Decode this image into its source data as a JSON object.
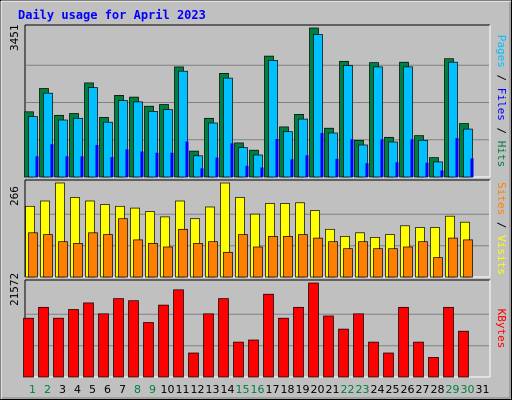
{
  "chart_data": {
    "type": "bar",
    "title": "Daily usage for April 2023",
    "categories": [
      "1",
      "2",
      "3",
      "4",
      "5",
      "6",
      "7",
      "8",
      "9",
      "10",
      "11",
      "12",
      "13",
      "14",
      "15",
      "16",
      "17",
      "18",
      "19",
      "20",
      "21",
      "22",
      "23",
      "24",
      "25",
      "26",
      "27",
      "28",
      "29",
      "30",
      "31"
    ],
    "weekend_days": [
      "1",
      "2",
      "8",
      "9",
      "15",
      "16",
      "22",
      "23",
      "29",
      "30"
    ],
    "panels": [
      {
        "name": "hits_files_pages",
        "ymax_label": "3451",
        "ylim": [
          0,
          3451
        ],
        "axis_label_parts": [
          {
            "text": "Pages",
            "color": "#00c0ff"
          },
          {
            "text": " / ",
            "color": "#000000"
          },
          {
            "text": "Files",
            "color": "#0000ff"
          },
          {
            "text": " / ",
            "color": "#000000"
          },
          {
            "text": "Hits",
            "color": "#008040"
          }
        ],
        "series": [
          {
            "name": "Hits",
            "color": "#008040",
            "values": [
              1510,
              2050,
              1430,
              1470,
              2180,
              1380,
              1890,
              1850,
              1640,
              1680,
              2550,
              600,
              1360,
              2400,
              790,
              620,
              2800,
              1160,
              1450,
              3451,
              1130,
              2680,
              850,
              2650,
              920,
              2660,
              960,
              450,
              2740,
              1240
            ]
          },
          {
            "name": "Files",
            "color": "#00c0ff",
            "values": [
              1400,
              1940,
              1320,
              1360,
              2070,
              1270,
              1770,
              1740,
              1520,
              1560,
              2450,
              490,
              1250,
              2290,
              680,
              510,
              2700,
              1050,
              1340,
              3300,
              1020,
              2580,
              740,
              2550,
              810,
              2550,
              850,
              350,
              2660,
              1110
            ]
          },
          {
            "name": "Pages",
            "color": "#0000ff",
            "values": [
              480,
              760,
              480,
              480,
              740,
              460,
              640,
              590,
              560,
              560,
              820,
              200,
              450,
              780,
              260,
              220,
              880,
              410,
              500,
              1020,
              420,
              870,
              320,
              870,
              340,
              870,
              330,
              150,
              900,
              430
            ]
          }
        ]
      },
      {
        "name": "visits_sites",
        "ymax_label": "266",
        "ylim": [
          0,
          266
        ],
        "axis_label_parts": [
          {
            "text": "Sites",
            "color": "#ff8000"
          },
          {
            "text": " / ",
            "color": "#000000"
          },
          {
            "text": "Visits",
            "color": "#ffff00"
          }
        ],
        "series": [
          {
            "name": "Visits",
            "color": "#ffff00",
            "values": [
              200,
              215,
              266,
              225,
              215,
              205,
              200,
              195,
              185,
              170,
              215,
              165,
              198,
              266,
              225,
              178,
              208,
              208,
              210,
              188,
              135,
              115,
              125,
              112,
              120,
              145,
              140,
              140,
              172,
              155
            ]
          },
          {
            "name": "Sites",
            "color": "#ff8000",
            "values": [
              125,
              120,
              100,
              95,
              125,
              120,
              165,
              105,
              95,
              85,
              135,
              95,
              100,
              70,
              120,
              85,
              115,
              115,
              120,
              110,
              100,
              80,
              100,
              80,
              80,
              85,
              100,
              55,
              110,
              105
            ]
          }
        ]
      },
      {
        "name": "kbytes",
        "ymax_label": "21572",
        "ylim": [
          0,
          21572
        ],
        "axis_label_parts": [
          {
            "text": "KBytes",
            "color": "#ff0000"
          }
        ],
        "series": [
          {
            "name": "KBytes",
            "color": "#ff0000",
            "values": [
              13500,
              16000,
              13500,
              15500,
              17000,
              14500,
              18000,
              17500,
              12500,
              16500,
              20000,
              5500,
              14500,
              18000,
              8000,
              8500,
              19000,
              13500,
              16000,
              21572,
              14000,
              11000,
              14500,
              8000,
              5500,
              16000,
              8000,
              4500,
              16000,
              10500
            ]
          }
        ]
      }
    ]
  }
}
